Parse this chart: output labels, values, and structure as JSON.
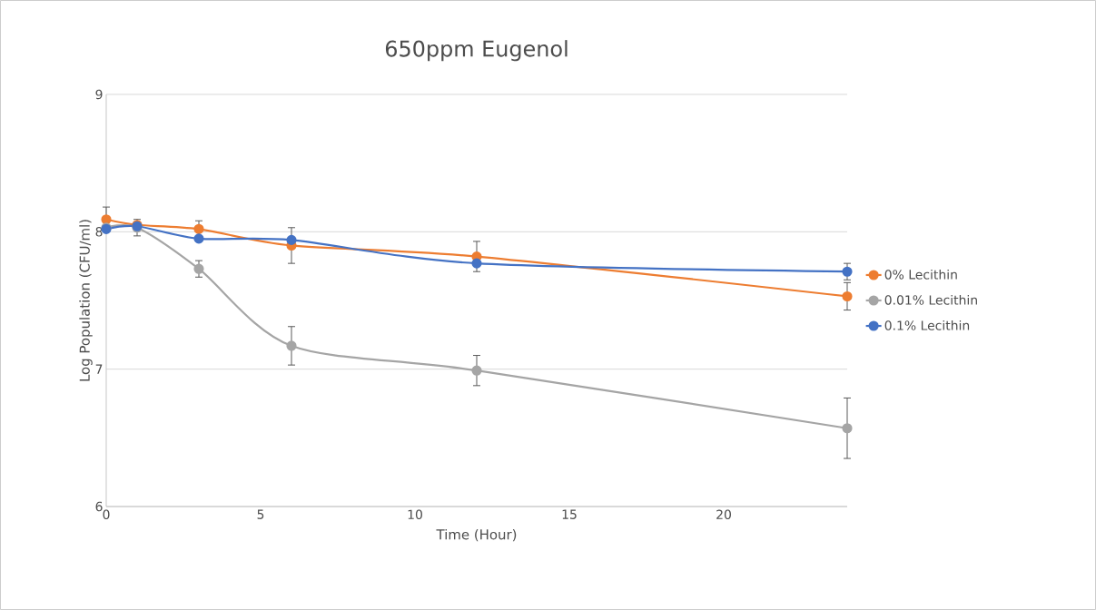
{
  "chart_data": {
    "type": "line",
    "title": "650ppm Eugenol",
    "xlabel": "Time (Hour)",
    "ylabel": "Log Population (CFU/ml)",
    "x": [
      0,
      1,
      3,
      6,
      12,
      24
    ],
    "series": [
      {
        "name": "0% Lecithin",
        "color": "#ed7d31",
        "values": [
          8.09,
          8.05,
          8.02,
          7.9,
          7.82,
          7.53
        ],
        "errors": [
          0.09,
          null,
          0.06,
          0.13,
          0.11,
          0.1
        ]
      },
      {
        "name": "0.01% Lecithin",
        "color": "#a5a5a5",
        "values": [
          8.03,
          8.03,
          7.73,
          7.17,
          6.99,
          6.57
        ],
        "errors": [
          null,
          0.06,
          0.06,
          0.14,
          0.11,
          0.22
        ]
      },
      {
        "name": "0.1% Lecithin",
        "color": "#4472c4",
        "values": [
          8.02,
          8.04,
          7.95,
          7.94,
          7.77,
          7.71
        ],
        "errors": [
          null,
          null,
          null,
          null,
          null,
          0.06
        ]
      }
    ],
    "xlim": [
      0,
      24
    ],
    "ylim": [
      6,
      9
    ],
    "xticks": [
      0,
      5,
      10,
      15,
      20
    ],
    "yticks": [
      6,
      7,
      8,
      9
    ],
    "grid": "y",
    "legend": "right",
    "marker": "circle",
    "line_style": "solid"
  }
}
